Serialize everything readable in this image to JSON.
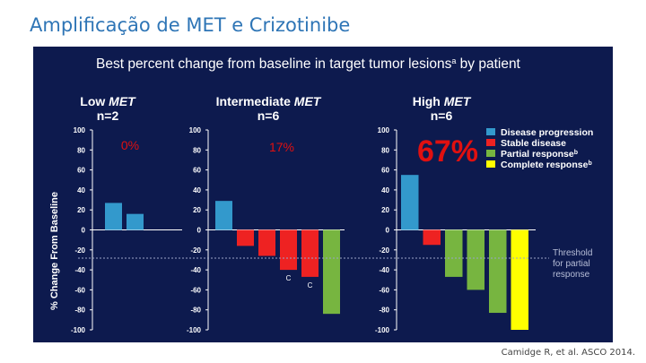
{
  "slide": {
    "title": "Amplificação de MET e Crizotinibe",
    "citation": "Camidge R, et al. ASCO 2014."
  },
  "chart_data": {
    "type": "bar",
    "title": "Best percent change from baseline in target tumor lesions",
    "title_superscript": "a",
    "title_suffix": " by patient",
    "ylabel": "% Change From Baseline",
    "ylim": [
      -100,
      100
    ],
    "yticks": [
      100,
      80,
      60,
      40,
      20,
      0,
      -20,
      -40,
      -60,
      -80,
      -100
    ],
    "threshold": {
      "value": -30,
      "label_lines": [
        "Threshold",
        "for partial",
        "response"
      ]
    },
    "legend": {
      "placement": "top-right",
      "items": [
        {
          "key": "pd",
          "label": "Disease progression",
          "sup": "",
          "color": "#3399cc"
        },
        {
          "key": "sd",
          "label": "Stable disease",
          "sup": "",
          "color": "#ee2222"
        },
        {
          "key": "pr",
          "label": "Partial response",
          "sup": "b",
          "color": "#77b540"
        },
        {
          "key": "cr",
          "label": "Complete response",
          "sup": "b",
          "color": "#ffff00"
        }
      ]
    },
    "panels": [
      {
        "name": "Low MET",
        "title_prefix": "Low ",
        "title_emph": "MET",
        "n_label": "n=2",
        "response_rate": "0%",
        "bars": [
          {
            "value": 27,
            "category": "pd",
            "marker": ""
          },
          {
            "value": 16,
            "category": "pd",
            "marker": ""
          }
        ]
      },
      {
        "name": "Intermediate MET",
        "title_prefix": "Intermediate ",
        "title_emph": "MET",
        "n_label": "n=6",
        "response_rate": "17%",
        "bars": [
          {
            "value": 29,
            "category": "pd",
            "marker": ""
          },
          {
            "value": -16,
            "category": "sd",
            "marker": ""
          },
          {
            "value": -26,
            "category": "sd",
            "marker": ""
          },
          {
            "value": -40,
            "category": "sd",
            "marker": "C"
          },
          {
            "value": -47,
            "category": "sd",
            "marker": "C"
          },
          {
            "value": -84,
            "category": "pr",
            "marker": ""
          }
        ]
      },
      {
        "name": "High MET",
        "title_prefix": "High ",
        "title_emph": "MET",
        "n_label": "n=6",
        "response_rate": "67%",
        "bars": [
          {
            "value": 55,
            "category": "pd",
            "marker": ""
          },
          {
            "value": -15,
            "category": "sd",
            "marker": ""
          },
          {
            "value": -47,
            "category": "pr",
            "marker": ""
          },
          {
            "value": -60,
            "category": "pr",
            "marker": ""
          },
          {
            "value": -83,
            "category": "pr",
            "marker": ""
          },
          {
            "value": -100,
            "category": "cr",
            "marker": ""
          }
        ]
      }
    ]
  }
}
